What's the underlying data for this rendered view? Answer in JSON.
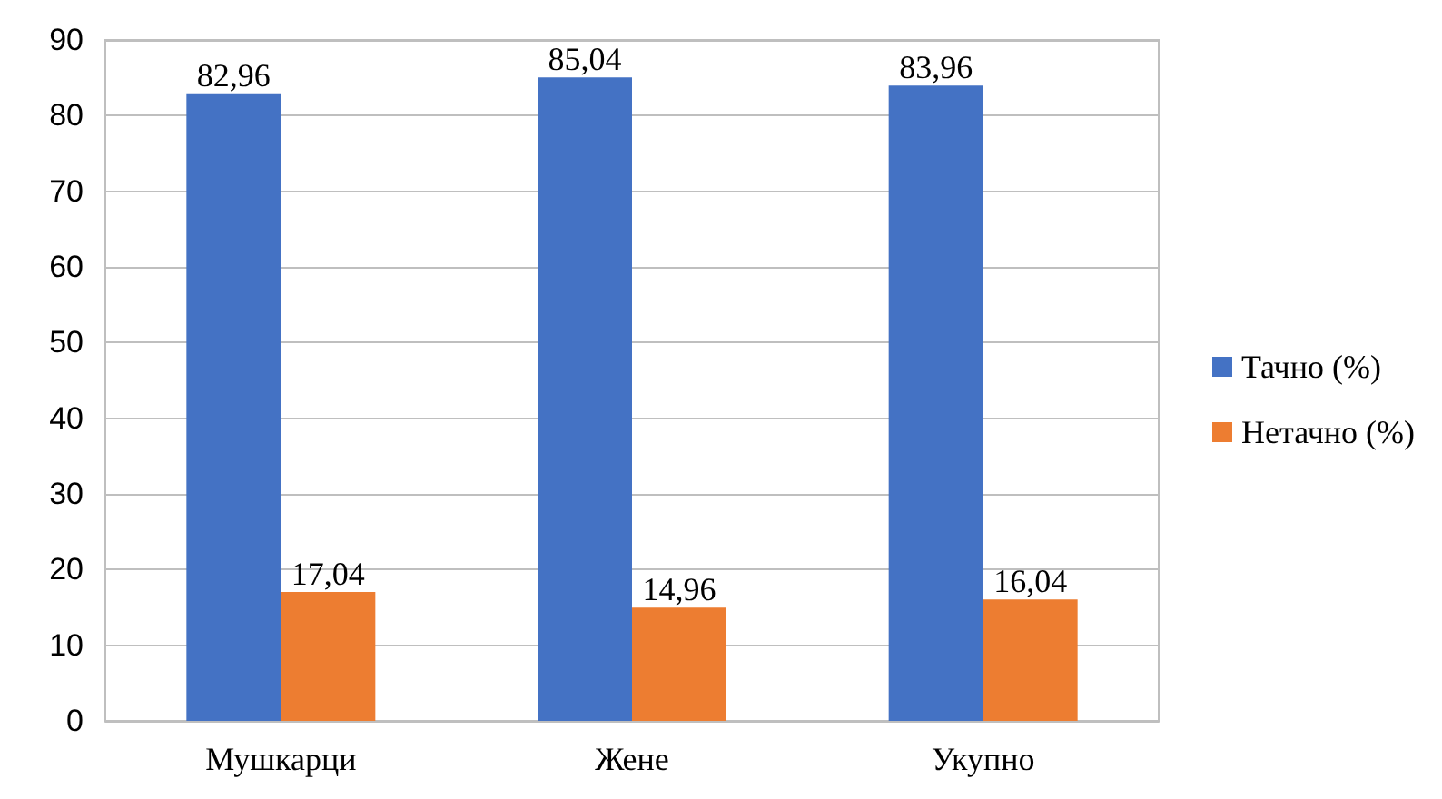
{
  "chart_data": {
    "type": "bar",
    "categories": [
      "Мушкарци",
      "Жене",
      "Укупно"
    ],
    "series": [
      {
        "name": "Тачно (%)",
        "color": "#4472c4",
        "values": [
          82.96,
          85.04,
          83.96
        ],
        "value_labels": [
          "82,96",
          "85,04",
          "83,96"
        ]
      },
      {
        "name": "Нетачно (%)",
        "color": "#ed7d31",
        "values": [
          17.04,
          14.96,
          16.04
        ],
        "value_labels": [
          "17,04",
          "14,96",
          "16,04"
        ]
      }
    ],
    "ylim": [
      0,
      90
    ],
    "yticks": [
      0,
      10,
      20,
      30,
      40,
      50,
      60,
      70,
      80,
      90
    ],
    "grid": "y",
    "legend": "right"
  }
}
